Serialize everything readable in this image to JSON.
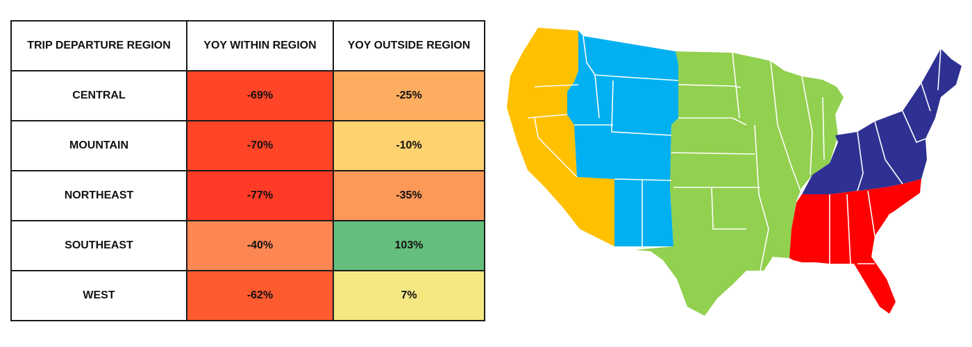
{
  "chart_data": [
    {
      "type": "table",
      "columns": [
        "TRIP DEPARTURE REGION",
        "YOY WITHIN REGION",
        "YOY OUTSIDE REGION"
      ],
      "rows": [
        {
          "region": "CENTRAL",
          "within": "-69%",
          "outside": "-25%",
          "within_value": -69,
          "outside_value": -25,
          "within_color": "#ff4528",
          "outside_color": "#fdad5f"
        },
        {
          "region": "MOUNTAIN",
          "within": "-70%",
          "outside": "-10%",
          "within_value": -70,
          "outside_value": -10,
          "within_color": "#ff4428",
          "outside_color": "#fed26e"
        },
        {
          "region": "NORTHEAST",
          "within": "-77%",
          "outside": "-35%",
          "within_value": -77,
          "outside_value": -35,
          "within_color": "#ff3a27",
          "outside_color": "#fc9858"
        },
        {
          "region": "SOUTHEAST",
          "within": "-40%",
          "outside": "103%",
          "within_value": -40,
          "outside_value": 103,
          "within_color": "#fd8753",
          "outside_color": "#64bf7c"
        },
        {
          "region": "WEST",
          "within": "-62%",
          "outside": "7%",
          "within_value": -62,
          "outside_value": 7,
          "within_color": "#fe5a30",
          "outside_color": "#f5e883"
        }
      ]
    },
    {
      "type": "map",
      "regions": [
        {
          "name": "WEST",
          "color": "#ffc000"
        },
        {
          "name": "MOUNTAIN",
          "color": "#00b0f0"
        },
        {
          "name": "CENTRAL",
          "color": "#92d050"
        },
        {
          "name": "NORTHEAST",
          "color": "#2e3192"
        },
        {
          "name": "SOUTHEAST",
          "color": "#ff0000"
        }
      ]
    }
  ]
}
